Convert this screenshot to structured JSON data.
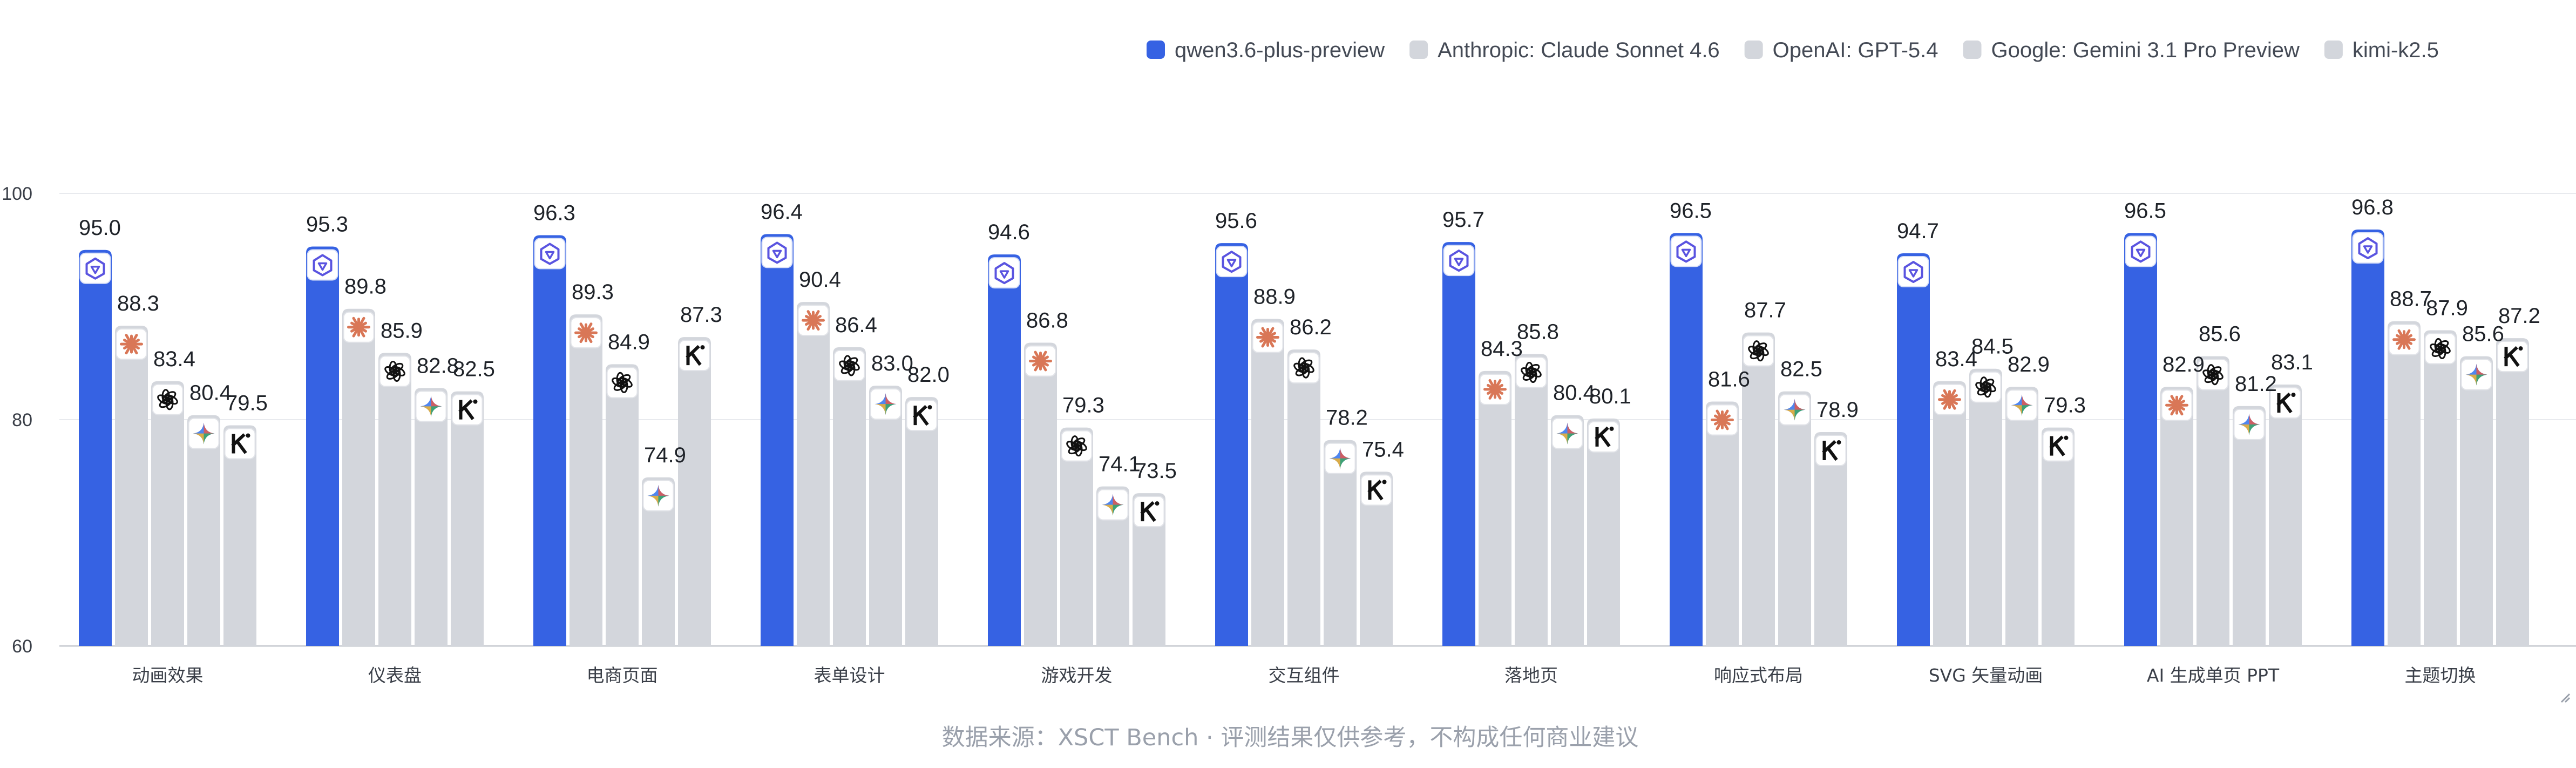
{
  "chart_data": {
    "type": "bar",
    "title": "",
    "xlabel": "",
    "ylabel": "",
    "ylim": [
      60,
      100
    ],
    "yticks": [
      60,
      80,
      100
    ],
    "grid": true,
    "legend_position": "top-right",
    "categories": [
      "动画效果",
      "仪表盘",
      "电商页面",
      "表单设计",
      "游戏开发",
      "交互组件",
      "落地页",
      "响应式布局",
      "SVG 矢量动画",
      "AI 生成单页 PPT",
      "主题切换"
    ],
    "series": [
      {
        "name": "qwen3.6-plus-preview",
        "color": "#3662e3",
        "icon": "qwen-logo-icon",
        "values": [
          95.0,
          95.3,
          96.3,
          96.4,
          94.6,
          95.6,
          95.7,
          96.5,
          94.7,
          96.5,
          96.8
        ]
      },
      {
        "name": "Anthropic: Claude Sonnet 4.6",
        "color": "#d3d6dc",
        "icon": "claude-logo-icon",
        "values": [
          88.3,
          89.8,
          89.3,
          90.4,
          86.8,
          88.9,
          84.3,
          81.6,
          83.4,
          82.9,
          88.7
        ]
      },
      {
        "name": "OpenAI: GPT-5.4",
        "color": "#d3d6dc",
        "icon": "openai-logo-icon",
        "values": [
          83.4,
          85.9,
          84.9,
          86.4,
          79.3,
          86.2,
          85.8,
          87.7,
          84.5,
          85.6,
          87.9
        ]
      },
      {
        "name": "Google: Gemini 3.1 Pro Preview",
        "color": "#d3d6dc",
        "icon": "gemini-logo-icon",
        "values": [
          80.4,
          82.8,
          74.9,
          83.0,
          74.1,
          78.2,
          80.4,
          82.5,
          82.9,
          81.2,
          85.6
        ]
      },
      {
        "name": "kimi-k2.5",
        "color": "#d3d6dc",
        "icon": "kimi-logo-icon",
        "values": [
          79.5,
          82.5,
          87.3,
          82.0,
          73.5,
          75.4,
          80.1,
          78.9,
          79.3,
          83.1,
          87.2
        ]
      }
    ]
  },
  "footnote": "数据来源：XSCT Bench · 评测结果仅供参考，不构成任何商业建议"
}
